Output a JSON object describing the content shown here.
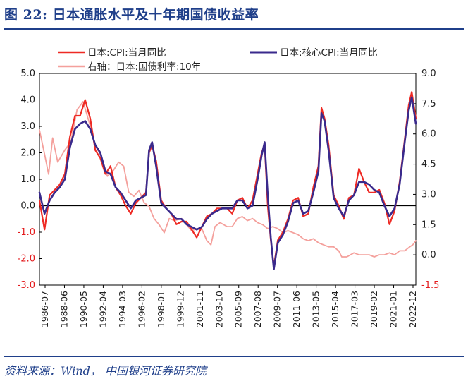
{
  "figure": {
    "title": "图 22:  日本通胀水平及十年期国债收益率",
    "source": "资料来源：Wind， 中国银河证券研究院"
  },
  "chart_data": {
    "type": "line",
    "title": "图 22:  日本通胀水平及十年期国债收益率",
    "legend_position": "top",
    "grid": false,
    "x_labels": [
      "1986-07",
      "1988-06",
      "1990-05",
      "1992-04",
      "1994-03",
      "1996-02",
      "1998-01",
      "1999-12",
      "2001-11",
      "2003-10",
      "2005-09",
      "2007-08",
      "2009-07",
      "2011-06",
      "2013-05",
      "2015-04",
      "2017-03",
      "2019-02",
      "2021-01",
      "2022-12"
    ],
    "y_left": {
      "ylim": [
        -3.0,
        5.0
      ],
      "ticks": [
        "-3.0",
        "-2.0",
        "-1.0",
        "0.0",
        "1.0",
        "2.0",
        "3.0",
        "4.0",
        "5.0"
      ],
      "negative_color": "#e31a1c"
    },
    "y_right": {
      "ylim": [
        -1.5,
        9.0
      ],
      "ticks": [
        "-1.5",
        "0.0",
        "1.5",
        "3.0",
        "4.5",
        "6.0",
        "7.5",
        "9.0"
      ],
      "negative_color": "#e31a1c"
    },
    "series": [
      {
        "name": "日本:CPI:当月同比",
        "axis": "left",
        "color": "#ee2a24",
        "x": [
          1986.5,
          1987.0,
          1987.5,
          1988.0,
          1988.5,
          1989.0,
          1989.5,
          1990.0,
          1990.5,
          1991.0,
          1991.5,
          1992.0,
          1992.5,
          1993.0,
          1993.5,
          1994.0,
          1994.5,
          1995.0,
          1995.5,
          1996.0,
          1996.5,
          1997.0,
          1997.3,
          1997.6,
          1998.0,
          1998.5,
          1999.0,
          1999.5,
          2000.0,
          2000.5,
          2001.0,
          2001.5,
          2002.0,
          2002.5,
          2003.0,
          2003.5,
          2004.0,
          2004.5,
          2005.0,
          2005.5,
          2006.0,
          2006.5,
          2007.0,
          2007.5,
          2008.0,
          2008.4,
          2008.7,
          2009.0,
          2009.3,
          2009.6,
          2010.0,
          2010.5,
          2011.0,
          2011.5,
          2012.0,
          2012.5,
          2013.0,
          2013.5,
          2014.0,
          2014.3,
          2014.6,
          2015.0,
          2015.5,
          2016.0,
          2016.5,
          2017.0,
          2017.5,
          2018.0,
          2018.5,
          2019.0,
          2019.5,
          2020.0,
          2020.5,
          2021.0,
          2021.5,
          2022.0,
          2022.5,
          2022.9,
          2023.2,
          2023.6
        ],
        "values": [
          0.2,
          -0.9,
          0.4,
          0.6,
          0.8,
          1.2,
          2.6,
          3.4,
          3.4,
          4.0,
          3.3,
          2.1,
          1.8,
          1.2,
          1.5,
          0.7,
          0.4,
          0.0,
          -0.3,
          0.1,
          0.3,
          0.5,
          2.0,
          2.3,
          1.7,
          0.2,
          -0.1,
          -0.3,
          -0.7,
          -0.6,
          -0.6,
          -0.9,
          -1.2,
          -0.8,
          -0.4,
          -0.3,
          -0.1,
          -0.1,
          -0.1,
          -0.3,
          0.2,
          0.3,
          -0.1,
          0.2,
          1.2,
          2.0,
          2.3,
          0.0,
          -1.3,
          -2.3,
          -1.3,
          -1.0,
          -0.5,
          0.2,
          0.3,
          -0.4,
          -0.3,
          0.7,
          1.5,
          3.7,
          3.3,
          2.3,
          0.4,
          0.0,
          -0.5,
          0.3,
          0.4,
          1.4,
          0.9,
          0.5,
          0.5,
          0.6,
          0.1,
          -0.7,
          -0.2,
          0.9,
          2.5,
          3.8,
          4.3,
          3.3
        ]
      },
      {
        "name": "日本:核心CPI:当月同比",
        "axis": "left",
        "color": "#3a2a8c",
        "x": [
          1986.5,
          1987.0,
          1987.5,
          1988.0,
          1988.5,
          1989.0,
          1989.5,
          1990.0,
          1990.5,
          1991.0,
          1991.5,
          1992.0,
          1992.5,
          1993.0,
          1993.5,
          1994.0,
          1994.5,
          1995.0,
          1995.5,
          1996.0,
          1996.5,
          1997.0,
          1997.3,
          1997.6,
          1998.0,
          1998.5,
          1999.0,
          1999.5,
          2000.0,
          2000.5,
          2001.0,
          2001.5,
          2002.0,
          2002.5,
          2003.0,
          2003.5,
          2004.0,
          2004.5,
          2005.0,
          2005.5,
          2006.0,
          2006.5,
          2007.0,
          2007.5,
          2008.0,
          2008.4,
          2008.7,
          2009.0,
          2009.3,
          2009.6,
          2010.0,
          2010.5,
          2011.0,
          2011.5,
          2012.0,
          2012.5,
          2013.0,
          2013.5,
          2014.0,
          2014.3,
          2014.6,
          2015.0,
          2015.5,
          2016.0,
          2016.5,
          2017.0,
          2017.5,
          2018.0,
          2018.5,
          2019.0,
          2019.5,
          2020.0,
          2020.5,
          2021.0,
          2021.5,
          2022.0,
          2022.5,
          2022.9,
          2023.2,
          2023.6
        ],
        "values": [
          0.5,
          -0.3,
          0.2,
          0.5,
          0.7,
          1.0,
          2.2,
          2.9,
          3.1,
          3.2,
          2.9,
          2.3,
          2.0,
          1.3,
          1.2,
          0.7,
          0.5,
          0.2,
          -0.1,
          0.2,
          0.3,
          0.4,
          2.1,
          2.4,
          1.5,
          0.1,
          -0.1,
          -0.3,
          -0.5,
          -0.5,
          -0.7,
          -0.8,
          -0.9,
          -0.8,
          -0.5,
          -0.3,
          -0.2,
          -0.1,
          -0.1,
          -0.1,
          0.2,
          0.2,
          -0.1,
          0.0,
          1.0,
          1.9,
          2.4,
          0.4,
          -1.2,
          -2.4,
          -1.4,
          -1.1,
          -0.6,
          0.1,
          0.2,
          -0.3,
          -0.2,
          0.5,
          1.3,
          3.5,
          3.2,
          2.1,
          0.3,
          -0.1,
          -0.4,
          0.2,
          0.4,
          0.9,
          0.9,
          0.8,
          0.6,
          0.5,
          0.0,
          -0.4,
          -0.1,
          0.8,
          2.4,
          3.6,
          4.1,
          3.1
        ]
      },
      {
        "name": "右轴：日本:国债利率:10年",
        "axis": "right",
        "color": "#f4a09c",
        "x": [
          1986.5,
          1987.0,
          1987.4,
          1987.8,
          1988.3,
          1989.0,
          1989.6,
          1990.2,
          1990.8,
          1991.5,
          1992.0,
          1992.6,
          1993.2,
          1993.8,
          1994.3,
          1994.8,
          1995.3,
          1995.8,
          1996.3,
          1996.8,
          1997.3,
          1997.8,
          1998.3,
          1998.8,
          1999.3,
          1999.8,
          2000.5,
          2001.0,
          2001.5,
          2002.0,
          2002.5,
          2003.0,
          2003.4,
          2003.8,
          2004.3,
          2005.0,
          2005.5,
          2006.0,
          2006.5,
          2007.0,
          2007.5,
          2008.0,
          2008.5,
          2009.0,
          2009.5,
          2010.0,
          2010.5,
          2011.0,
          2011.5,
          2012.0,
          2012.5,
          2013.0,
          2013.5,
          2014.0,
          2014.5,
          2015.0,
          2015.5,
          2016.0,
          2016.3,
          2016.8,
          2017.5,
          2018.0,
          2018.5,
          2019.0,
          2019.5,
          2020.0,
          2020.5,
          2021.0,
          2021.5,
          2022.0,
          2022.5,
          2023.0,
          2023.3,
          2023.6
        ],
        "values": [
          6.2,
          5.0,
          4.0,
          5.8,
          4.6,
          5.2,
          5.6,
          7.2,
          7.6,
          6.4,
          5.4,
          4.9,
          3.9,
          4.2,
          4.6,
          4.4,
          3.1,
          2.9,
          3.2,
          2.6,
          2.4,
          1.8,
          1.5,
          1.1,
          1.8,
          1.7,
          1.8,
          1.5,
          1.2,
          1.3,
          1.3,
          0.7,
          0.5,
          1.4,
          1.6,
          1.4,
          1.4,
          1.8,
          1.9,
          1.7,
          1.8,
          1.6,
          1.5,
          1.3,
          1.4,
          1.3,
          1.1,
          1.2,
          1.1,
          1.0,
          0.8,
          0.7,
          0.8,
          0.6,
          0.5,
          0.4,
          0.4,
          0.2,
          -0.1,
          -0.1,
          0.1,
          0.0,
          0.0,
          0.0,
          -0.1,
          0.0,
          0.0,
          0.1,
          0.0,
          0.2,
          0.2,
          0.4,
          0.5,
          0.7
        ]
      }
    ]
  }
}
